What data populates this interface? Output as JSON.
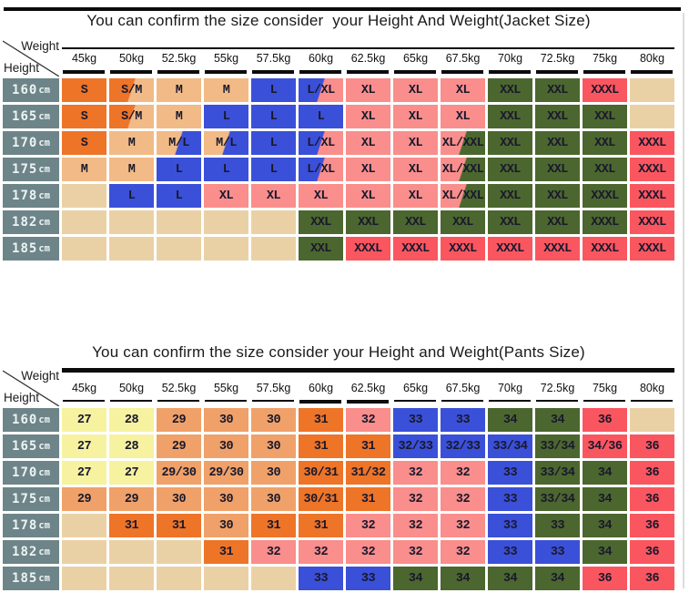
{
  "page": {
    "background": "#ffffff"
  },
  "colors": {
    "orange": "#EE7428",
    "tan": "#F2BA86",
    "apricot": "#F0A169",
    "yellow": "#F7F2A0",
    "blue": "#3B50D8",
    "pink": "#F98E8C",
    "green": "#4C662F",
    "red": "#FA5660",
    "empty": "#EAD1A5",
    "row_header_bg": "#6D8589",
    "cell_text": "#18182c",
    "divider": "#0b0b0b"
  },
  "chart_data": [
    {
      "type": "table",
      "title": "You can confirm the size consider  your Height And Weight(Jacket Size)",
      "corner": {
        "top": "Weight",
        "left": "Height"
      },
      "columns": [
        "45kg",
        "50kg",
        "52.5kg",
        "55kg",
        "57.5kg",
        "60kg",
        "62.5kg",
        "65kg",
        "67.5kg",
        "70kg",
        "72.5kg",
        "75kg",
        "80kg"
      ],
      "row_unit": "cm",
      "rows": [
        {
          "label": "160",
          "cells": [
            "S|orange",
            "S/M|orange>tan",
            "M|tan",
            "M|tan",
            "L|blue",
            "L/XL|blue>pink",
            "XL|pink",
            "XL|pink",
            "XL|pink",
            "XXL|green",
            "XXL|green",
            "XXXL|red",
            "|empty"
          ]
        },
        {
          "label": "165",
          "cells": [
            "S|orange",
            "S/M|orange>tan",
            "M|tan",
            "L|blue",
            "L|blue",
            "L|blue",
            "XL|pink",
            "XL|pink",
            "XL|pink",
            "XXL|green",
            "XXL|green",
            "XXL|green",
            "|empty"
          ]
        },
        {
          "label": "170",
          "cells": [
            "S|orange",
            "M|tan",
            "M/L|tan>blue",
            "M/L|tan>blue",
            "L|blue",
            "L/XL|blue>pink",
            "XL|pink",
            "XL|pink",
            "XL/XXL|pink>green",
            "XXL|green",
            "XXL|green",
            "XXL|green",
            "XXXL|red"
          ]
        },
        {
          "label": "175",
          "cells": [
            "M|tan",
            "M|tan",
            "L|blue",
            "L|blue",
            "L|blue",
            "L/XL|blue>pink",
            "XL|pink",
            "XL|pink",
            "XL/XXL|pink>green",
            "XXL|green",
            "XXL|green",
            "XXL|green",
            "XXXL|red"
          ]
        },
        {
          "label": "178",
          "cells": [
            "|empty",
            "L|blue",
            "L|blue",
            "XL|pink",
            "XL|pink",
            "XL|pink",
            "XL|pink",
            "XL|pink",
            "XL/XXL|pink>green",
            "XXL|green",
            "XXL|green",
            "XXXL|green",
            "XXXL|red"
          ]
        },
        {
          "label": "182",
          "cells": [
            "|empty",
            "|empty",
            "|empty",
            "|empty",
            "|empty",
            "XXL|green",
            "XXL|green",
            "XXL|green",
            "XXL|green",
            "XXL|green",
            "XXL|green",
            "XXXL|green",
            "XXXL|red"
          ]
        },
        {
          "label": "185",
          "cells": [
            "|empty",
            "|empty",
            "|empty",
            "|empty",
            "|empty",
            "XXL|green",
            "XXXL|red",
            "XXXL|red",
            "XXXL|red",
            "XXXL|red",
            "XXXL|red",
            "XXXL|red",
            "XXXL|red"
          ]
        }
      ]
    },
    {
      "type": "table",
      "title": "You can confirm the size consider your Height and Weight(Pants Size)",
      "corner": {
        "top": "Weight",
        "left": "Height"
      },
      "columns": [
        "45kg",
        "50kg",
        "52.5kg",
        "55kg",
        "57.5kg",
        "60kg",
        "62.5kg",
        "65kg",
        "67.5kg",
        "70kg",
        "72.5kg",
        "75kg",
        "80kg"
      ],
      "row_unit": "cm",
      "rows": [
        {
          "label": "160",
          "cells": [
            "27|yellow",
            "28|yellow",
            "29|apricot",
            "30|apricot",
            "30|apricot",
            "31|orange",
            "32|pink",
            "33|blue",
            "33|blue",
            "34|green",
            "34|green",
            "36|red",
            "|empty"
          ]
        },
        {
          "label": "165",
          "cells": [
            "27|yellow",
            "28|yellow",
            "29|apricot",
            "30|apricot",
            "30|apricot",
            "31|orange",
            "31|orange",
            "32/33|blue",
            "32/33|blue",
            "33/34|blue",
            "33/34|green",
            "34/36|red",
            "36|red"
          ]
        },
        {
          "label": "170",
          "cells": [
            "27|yellow",
            "27|yellow",
            "29/30|apricot",
            "29/30|apricot",
            "30|apricot",
            "30/31|orange",
            "31/32|orange",
            "32|pink",
            "32|pink",
            "33|blue",
            "33/34|green",
            "34|green",
            "36|red"
          ]
        },
        {
          "label": "175",
          "cells": [
            "29|apricot",
            "29|apricot",
            "30|apricot",
            "30|apricot",
            "30|apricot",
            "30/31|orange",
            "31|orange",
            "32|pink",
            "32|pink",
            "33|blue",
            "33/34|green",
            "34|green",
            "36|red"
          ]
        },
        {
          "label": "178",
          "cells": [
            "|empty",
            "31|orange",
            "31|orange",
            "30|apricot",
            "31|orange",
            "31|orange",
            "32|pink",
            "32|pink",
            "32|pink",
            "33|blue",
            "33|green",
            "34|green",
            "36|red"
          ]
        },
        {
          "label": "182",
          "cells": [
            "|empty",
            "|empty",
            "|empty",
            "31|orange",
            "32|pink",
            "32|pink",
            "32|pink",
            "32|pink",
            "32|pink",
            "33|blue",
            "33|blue",
            "34|green",
            "36|red"
          ]
        },
        {
          "label": "185",
          "cells": [
            "|empty",
            "|empty",
            "|empty",
            "|empty",
            "|empty",
            "33|blue",
            "33|blue",
            "34|green",
            "34|green",
            "34|green",
            "34|green",
            "36|red",
            "36|red"
          ]
        }
      ]
    }
  ]
}
